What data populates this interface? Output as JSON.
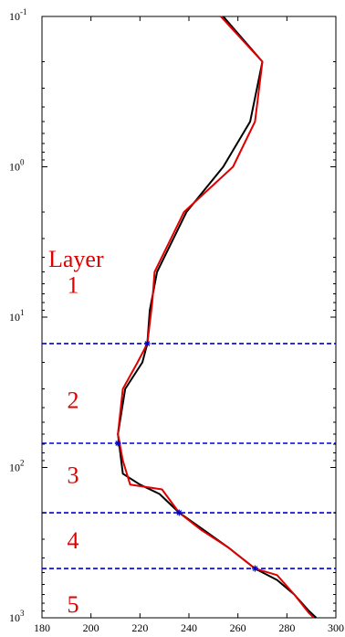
{
  "chart_data": {
    "type": "line",
    "x_ticks": [
      180,
      200,
      220,
      240,
      260,
      280,
      300
    ],
    "xlim": [
      180,
      300
    ],
    "y_scale": "log",
    "y_reversed": true,
    "ylim": [
      0.1,
      1000
    ],
    "y_ticks": [
      {
        "value": 0.1,
        "base": "10",
        "exp": "-1"
      },
      {
        "value": 1,
        "base": "10",
        "exp": "0"
      },
      {
        "value": 10,
        "base": "10",
        "exp": "1"
      },
      {
        "value": 100,
        "base": "10",
        "exp": "2"
      },
      {
        "value": 1000,
        "base": "10",
        "exp": "3"
      }
    ],
    "series": [
      {
        "color": "#000000",
        "points": [
          {
            "x": 254,
            "y": 0.1
          },
          {
            "x": 270,
            "y": 0.2
          },
          {
            "x": 265,
            "y": 0.5
          },
          {
            "x": 254,
            "y": 1.0
          },
          {
            "x": 239,
            "y": 2.0
          },
          {
            "x": 227,
            "y": 5.0
          },
          {
            "x": 224,
            "y": 9.0
          },
          {
            "x": 223,
            "y": 15.0
          },
          {
            "x": 221,
            "y": 20.0
          },
          {
            "x": 214,
            "y": 30.0
          },
          {
            "x": 211,
            "y": 60.0
          },
          {
            "x": 213,
            "y": 110.0
          },
          {
            "x": 220,
            "y": 130.0
          },
          {
            "x": 228,
            "y": 150.0
          },
          {
            "x": 236,
            "y": 200.0
          },
          {
            "x": 246,
            "y": 260.0
          },
          {
            "x": 256,
            "y": 340.0
          },
          {
            "x": 267,
            "y": 470.0
          },
          {
            "x": 276,
            "y": 560.0
          },
          {
            "x": 283,
            "y": 700.0
          },
          {
            "x": 289,
            "y": 900.0
          },
          {
            "x": 292,
            "y": 1000.0
          }
        ]
      },
      {
        "color": "#e00000",
        "points": [
          {
            "x": 253,
            "y": 0.1
          },
          {
            "x": 270,
            "y": 0.2
          },
          {
            "x": 267,
            "y": 0.5
          },
          {
            "x": 258,
            "y": 1.0
          },
          {
            "x": 238,
            "y": 2.0
          },
          {
            "x": 226,
            "y": 5.0
          },
          {
            "x": 225,
            "y": 8.0
          },
          {
            "x": 223,
            "y": 15.0
          },
          {
            "x": 219,
            "y": 20.0
          },
          {
            "x": 213,
            "y": 30.0
          },
          {
            "x": 211,
            "y": 60.0
          },
          {
            "x": 213,
            "y": 90.0
          },
          {
            "x": 216,
            "y": 130.0
          },
          {
            "x": 229,
            "y": 140.0
          },
          {
            "x": 236,
            "y": 200.0
          },
          {
            "x": 245,
            "y": 260.0
          },
          {
            "x": 256,
            "y": 340.0
          },
          {
            "x": 267,
            "y": 470.0
          },
          {
            "x": 276,
            "y": 520.0
          },
          {
            "x": 283,
            "y": 700.0
          },
          {
            "x": 289,
            "y": 930.0
          },
          {
            "x": 291,
            "y": 1000.0
          }
        ]
      }
    ],
    "boundaries": [
      {
        "y": 15,
        "x_marker": 223
      },
      {
        "y": 69,
        "x_marker": 211
      },
      {
        "y": 200,
        "x_marker": 236
      },
      {
        "y": 470,
        "x_marker": 267
      }
    ],
    "boundary_color": "#0000cc",
    "annotations": {
      "title": "Layer",
      "layers": [
        "1",
        "2",
        "3",
        "4",
        "5"
      ],
      "layer_y": [
        6,
        35,
        110,
        300,
        800
      ],
      "color": "#e00000"
    }
  }
}
